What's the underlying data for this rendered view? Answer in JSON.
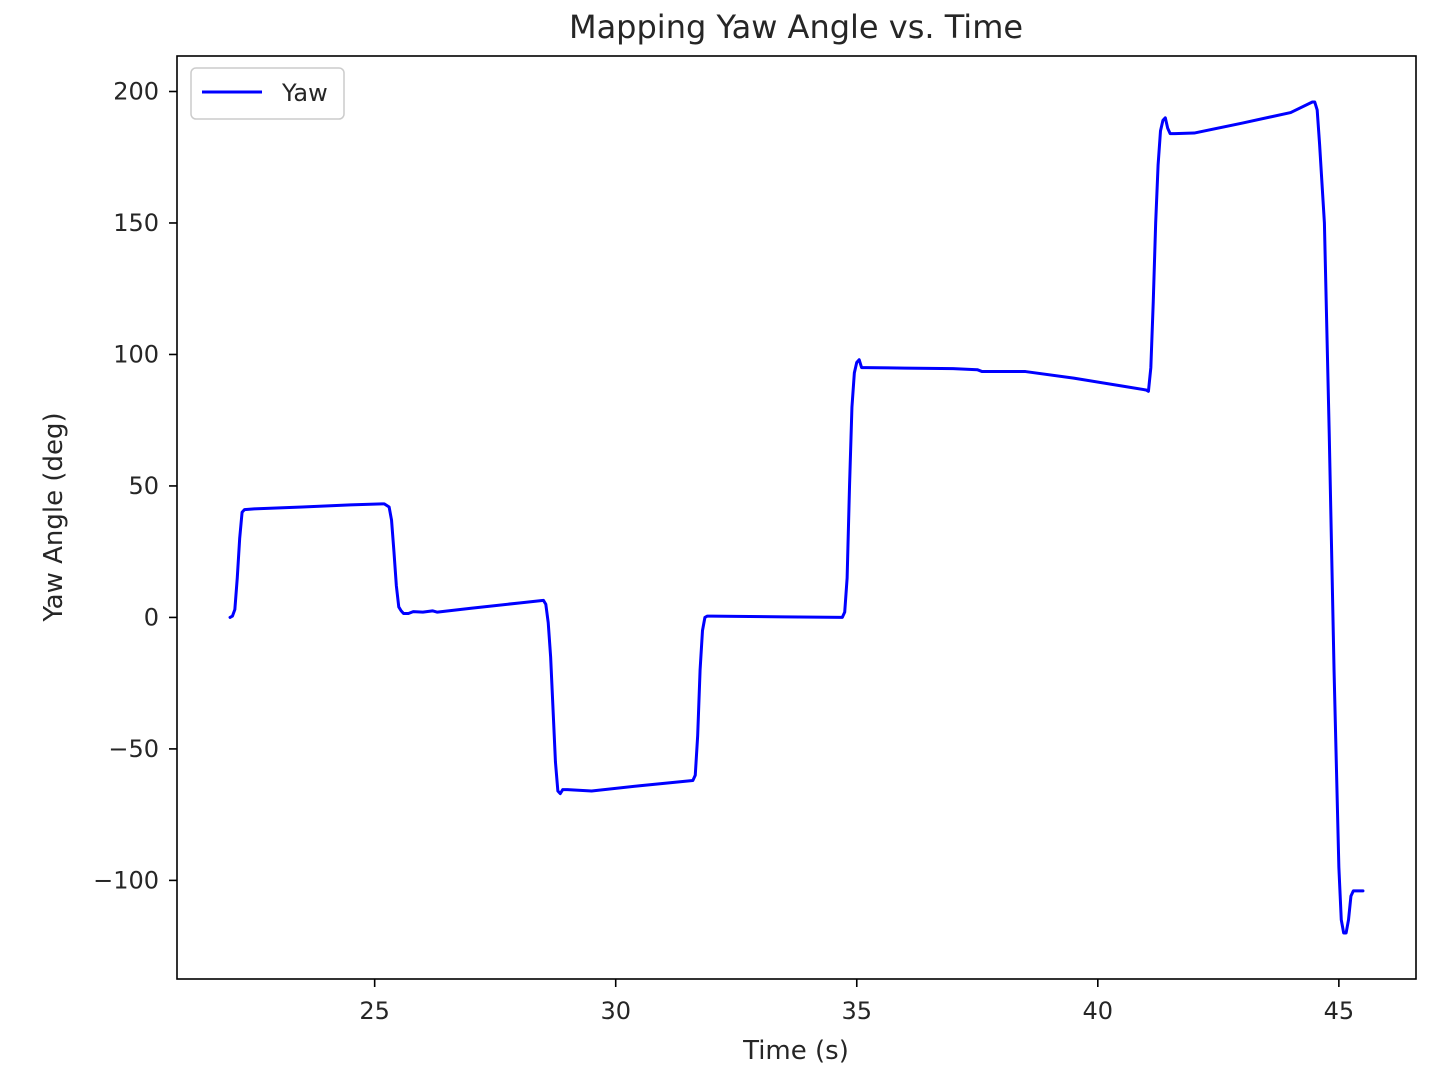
{
  "chart_data": {
    "type": "line",
    "title": "Mapping Yaw Angle vs. Time",
    "xlabel": "Time (s)",
    "ylabel": "Yaw Angle (deg)",
    "xlim": [
      20.9,
      46.6
    ],
    "ylim": [
      -137.5,
      213.5
    ],
    "x_ticks": [
      25,
      30,
      35,
      40,
      45
    ],
    "y_ticks": [
      -100,
      -50,
      0,
      50,
      100,
      150,
      200
    ],
    "x_tick_labels": [
      "25",
      "30",
      "35",
      "40",
      "45"
    ],
    "y_tick_labels": [
      "−100",
      "−50",
      "0",
      "50",
      "100",
      "150",
      "200"
    ],
    "grid": false,
    "legend": {
      "position": "top-left"
    },
    "series": [
      {
        "name": "Yaw",
        "color": "#0000ff",
        "x": [
          22.0,
          22.05,
          22.1,
          22.15,
          22.2,
          22.25,
          22.3,
          22.5,
          23.5,
          24.5,
          25.2,
          25.3,
          25.35,
          25.4,
          25.45,
          25.5,
          25.55,
          25.6,
          25.7,
          25.8,
          26.0,
          26.2,
          26.3,
          27.0,
          28.0,
          28.5,
          28.55,
          28.6,
          28.65,
          28.7,
          28.75,
          28.8,
          28.85,
          28.9,
          29.0,
          29.5,
          30.5,
          31.6,
          31.65,
          31.7,
          31.75,
          31.8,
          31.85,
          31.9,
          32.0,
          32.5,
          33.5,
          34.7,
          34.75,
          34.8,
          34.85,
          34.9,
          34.95,
          35.0,
          35.05,
          35.1,
          35.2,
          36.0,
          37.0,
          37.5,
          37.6,
          38.5,
          39.5,
          40.5,
          41.0,
          41.05,
          41.1,
          41.15,
          41.2,
          41.25,
          41.3,
          41.35,
          41.4,
          41.45,
          41.5,
          41.6,
          42.0,
          43.0,
          44.0,
          44.45,
          44.5,
          44.55,
          44.6,
          44.7,
          44.8,
          44.9,
          45.0,
          45.05,
          45.1,
          45.15,
          45.2,
          45.25,
          45.3,
          45.35,
          45.4,
          45.5
        ],
        "y": [
          0,
          0.5,
          3,
          15,
          30,
          40,
          41,
          41.3,
          42,
          42.8,
          43.2,
          42,
          37,
          25,
          12,
          4,
          2.5,
          1.5,
          1.5,
          2.2,
          2,
          2.5,
          2,
          3.5,
          5.5,
          6.5,
          5,
          -2,
          -15,
          -35,
          -55,
          -66,
          -67,
          -65.5,
          -65.5,
          -66,
          -64,
          -62,
          -60,
          -45,
          -20,
          -5,
          0,
          0.5,
          0.5,
          0.4,
          0.2,
          0,
          2,
          15,
          50,
          80,
          93,
          97,
          98,
          95,
          95,
          94.8,
          94.6,
          94.2,
          93.5,
          93.5,
          91,
          88,
          86.5,
          86,
          95,
          120,
          150,
          172,
          185,
          189,
          190,
          186,
          184,
          184,
          184.2,
          188,
          192,
          196,
          196,
          193,
          180,
          150,
          70,
          -20,
          -95,
          -115,
          -120,
          -120,
          -115,
          -106,
          -104,
          -104,
          -104,
          -104
        ]
      }
    ]
  }
}
